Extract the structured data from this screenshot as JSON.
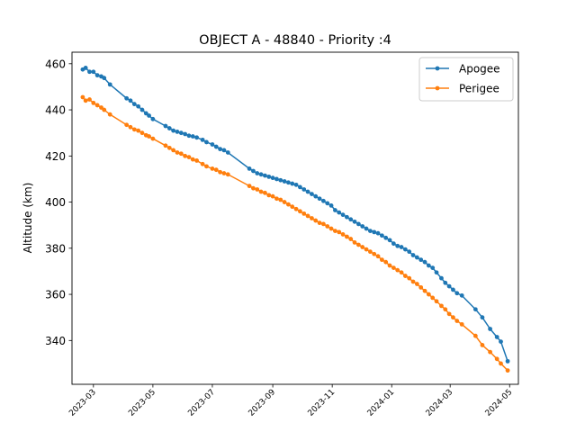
{
  "chart_data": {
    "type": "line",
    "title": "OBJECT A - 48840 - Priority :4",
    "xlabel": "",
    "ylabel": "Altitude (km)",
    "xlim": [
      "2023-02-07",
      "2024-05-10"
    ],
    "ylim": [
      321,
      465
    ],
    "x_ticks": [
      "2023-03",
      "2023-05",
      "2023-07",
      "2023-09",
      "2023-11",
      "2024-01",
      "2024-03",
      "2024-05"
    ],
    "y_ticks": [
      340,
      360,
      380,
      400,
      420,
      440,
      460
    ],
    "grid": false,
    "legend": "top-right",
    "series": [
      {
        "name": "Apogee",
        "color": "#1f77b4",
        "points": [
          [
            "2023-02-18",
            457.5
          ],
          [
            "2023-02-21",
            458.2
          ],
          [
            "2023-02-25",
            456.5
          ],
          [
            "2023-03-01",
            456.5
          ],
          [
            "2023-03-05",
            455.0
          ],
          [
            "2023-03-09",
            454.5
          ],
          [
            "2023-03-12",
            453.8
          ],
          [
            "2023-03-18",
            451.0
          ],
          [
            "2023-04-04",
            445.0
          ],
          [
            "2023-04-08",
            444.0
          ],
          [
            "2023-04-12",
            442.5
          ],
          [
            "2023-04-16",
            441.5
          ],
          [
            "2023-04-20",
            440.0
          ],
          [
            "2023-04-24",
            438.5
          ],
          [
            "2023-04-27",
            437.5
          ],
          [
            "2023-05-01",
            436.0
          ],
          [
            "2023-05-14",
            433.0
          ],
          [
            "2023-05-18",
            432.0
          ],
          [
            "2023-05-22",
            431.0
          ],
          [
            "2023-05-26",
            430.5
          ],
          [
            "2023-05-30",
            430.0
          ],
          [
            "2023-06-03",
            429.5
          ],
          [
            "2023-06-07",
            428.8
          ],
          [
            "2023-06-11",
            428.5
          ],
          [
            "2023-06-15",
            428.0
          ],
          [
            "2023-06-21",
            427.0
          ],
          [
            "2023-06-25",
            426.0
          ],
          [
            "2023-07-01",
            425.0
          ],
          [
            "2023-07-05",
            424.0
          ],
          [
            "2023-07-09",
            423.0
          ],
          [
            "2023-07-13",
            422.5
          ],
          [
            "2023-07-17",
            421.5
          ],
          [
            "2023-08-08",
            414.5
          ],
          [
            "2023-08-12",
            413.5
          ],
          [
            "2023-08-16",
            412.5
          ],
          [
            "2023-08-20",
            412.0
          ],
          [
            "2023-08-24",
            411.5
          ],
          [
            "2023-08-28",
            411.0
          ],
          [
            "2023-09-01",
            410.5
          ],
          [
            "2023-09-05",
            410.0
          ],
          [
            "2023-09-09",
            409.5
          ],
          [
            "2023-09-13",
            409.0
          ],
          [
            "2023-09-17",
            408.5
          ],
          [
            "2023-09-21",
            408.0
          ],
          [
            "2023-09-25",
            407.5
          ],
          [
            "2023-09-29",
            406.5
          ],
          [
            "2023-10-03",
            405.5
          ],
          [
            "2023-10-07",
            404.5
          ],
          [
            "2023-10-11",
            403.5
          ],
          [
            "2023-10-15",
            402.5
          ],
          [
            "2023-10-19",
            401.5
          ],
          [
            "2023-10-23",
            400.5
          ],
          [
            "2023-10-27",
            399.5
          ],
          [
            "2023-10-31",
            398.5
          ],
          [
            "2023-11-04",
            396.5
          ],
          [
            "2023-11-08",
            395.5
          ],
          [
            "2023-11-12",
            394.5
          ],
          [
            "2023-11-16",
            393.5
          ],
          [
            "2023-11-20",
            392.5
          ],
          [
            "2023-11-24",
            391.5
          ],
          [
            "2023-11-28",
            390.5
          ],
          [
            "2023-12-02",
            389.5
          ],
          [
            "2023-12-06",
            388.5
          ],
          [
            "2023-12-10",
            387.5
          ],
          [
            "2023-12-14",
            387.0
          ],
          [
            "2023-12-18",
            386.5
          ],
          [
            "2023-12-22",
            385.5
          ],
          [
            "2023-12-26",
            384.5
          ],
          [
            "2023-12-30",
            383.5
          ],
          [
            "2024-01-03",
            382.0
          ],
          [
            "2024-01-07",
            381.0
          ],
          [
            "2024-01-11",
            380.5
          ],
          [
            "2024-01-15",
            379.5
          ],
          [
            "2024-01-19",
            378.5
          ],
          [
            "2024-01-23",
            377.0
          ],
          [
            "2024-01-27",
            376.0
          ],
          [
            "2024-01-31",
            375.0
          ],
          [
            "2024-02-04",
            374.0
          ],
          [
            "2024-02-08",
            372.5
          ],
          [
            "2024-02-12",
            371.5
          ],
          [
            "2024-02-16",
            369.5
          ],
          [
            "2024-02-21",
            367.0
          ],
          [
            "2024-02-25",
            365.0
          ],
          [
            "2024-02-29",
            363.5
          ],
          [
            "2024-03-04",
            362.0
          ],
          [
            "2024-03-08",
            360.5
          ],
          [
            "2024-03-13",
            359.5
          ],
          [
            "2024-03-27",
            353.5
          ],
          [
            "2024-04-03",
            350.0
          ],
          [
            "2024-04-11",
            345.0
          ],
          [
            "2024-04-18",
            341.5
          ],
          [
            "2024-04-22",
            339.5
          ],
          [
            "2024-04-29",
            331.0
          ]
        ]
      },
      {
        "name": "Perigee",
        "color": "#ff7f0e",
        "points": [
          [
            "2023-02-18",
            445.5
          ],
          [
            "2023-02-21",
            444.0
          ],
          [
            "2023-02-25",
            444.5
          ],
          [
            "2023-03-01",
            443.0
          ],
          [
            "2023-03-05",
            442.0
          ],
          [
            "2023-03-09",
            441.0
          ],
          [
            "2023-03-12",
            440.0
          ],
          [
            "2023-03-18",
            438.0
          ],
          [
            "2023-04-04",
            433.5
          ],
          [
            "2023-04-08",
            432.5
          ],
          [
            "2023-04-12",
            431.5
          ],
          [
            "2023-04-16",
            431.0
          ],
          [
            "2023-04-20",
            430.0
          ],
          [
            "2023-04-24",
            429.0
          ],
          [
            "2023-04-27",
            428.5
          ],
          [
            "2023-05-01",
            427.5
          ],
          [
            "2023-05-14",
            424.5
          ],
          [
            "2023-05-18",
            423.5
          ],
          [
            "2023-05-22",
            422.5
          ],
          [
            "2023-05-26",
            421.5
          ],
          [
            "2023-05-30",
            421.0
          ],
          [
            "2023-06-03",
            420.0
          ],
          [
            "2023-06-07",
            419.5
          ],
          [
            "2023-06-11",
            418.5
          ],
          [
            "2023-06-15",
            418.0
          ],
          [
            "2023-06-21",
            416.5
          ],
          [
            "2023-06-25",
            415.5
          ],
          [
            "2023-07-01",
            414.5
          ],
          [
            "2023-07-05",
            414.0
          ],
          [
            "2023-07-09",
            413.0
          ],
          [
            "2023-07-13",
            412.5
          ],
          [
            "2023-07-17",
            412.0
          ],
          [
            "2023-08-08",
            407.0
          ],
          [
            "2023-08-12",
            406.0
          ],
          [
            "2023-08-16",
            405.5
          ],
          [
            "2023-08-20",
            404.5
          ],
          [
            "2023-08-24",
            404.0
          ],
          [
            "2023-08-28",
            403.0
          ],
          [
            "2023-09-01",
            402.5
          ],
          [
            "2023-09-05",
            401.5
          ],
          [
            "2023-09-09",
            401.0
          ],
          [
            "2023-09-13",
            400.0
          ],
          [
            "2023-09-17",
            399.0
          ],
          [
            "2023-09-21",
            398.0
          ],
          [
            "2023-09-25",
            397.0
          ],
          [
            "2023-09-29",
            396.0
          ],
          [
            "2023-10-03",
            395.0
          ],
          [
            "2023-10-07",
            394.0
          ],
          [
            "2023-10-11",
            393.0
          ],
          [
            "2023-10-15",
            392.0
          ],
          [
            "2023-10-19",
            391.0
          ],
          [
            "2023-10-23",
            390.5
          ],
          [
            "2023-10-27",
            389.5
          ],
          [
            "2023-10-31",
            388.5
          ],
          [
            "2023-11-04",
            387.5
          ],
          [
            "2023-11-08",
            387.0
          ],
          [
            "2023-11-12",
            386.0
          ],
          [
            "2023-11-16",
            385.0
          ],
          [
            "2023-11-20",
            384.0
          ],
          [
            "2023-11-24",
            382.5
          ],
          [
            "2023-11-28",
            381.5
          ],
          [
            "2023-12-02",
            380.5
          ],
          [
            "2023-12-06",
            379.5
          ],
          [
            "2023-12-10",
            378.5
          ],
          [
            "2023-12-14",
            377.5
          ],
          [
            "2023-12-18",
            376.5
          ],
          [
            "2023-12-22",
            375.0
          ],
          [
            "2023-12-26",
            374.0
          ],
          [
            "2023-12-30",
            372.5
          ],
          [
            "2024-01-03",
            371.5
          ],
          [
            "2024-01-07",
            370.5
          ],
          [
            "2024-01-11",
            369.5
          ],
          [
            "2024-01-15",
            368.0
          ],
          [
            "2024-01-19",
            367.0
          ],
          [
            "2024-01-23",
            365.5
          ],
          [
            "2024-01-27",
            364.5
          ],
          [
            "2024-01-31",
            363.0
          ],
          [
            "2024-02-04",
            361.5
          ],
          [
            "2024-02-08",
            360.0
          ],
          [
            "2024-02-12",
            358.5
          ],
          [
            "2024-02-16",
            357.0
          ],
          [
            "2024-02-21",
            355.0
          ],
          [
            "2024-02-25",
            353.5
          ],
          [
            "2024-02-29",
            351.5
          ],
          [
            "2024-03-04",
            350.0
          ],
          [
            "2024-03-08",
            348.5
          ],
          [
            "2024-03-13",
            347.0
          ],
          [
            "2024-03-27",
            342.0
          ],
          [
            "2024-04-03",
            338.0
          ],
          [
            "2024-04-11",
            335.0
          ],
          [
            "2024-04-18",
            332.0
          ],
          [
            "2024-04-22",
            330.0
          ],
          [
            "2024-04-29",
            327.0
          ]
        ]
      }
    ]
  }
}
